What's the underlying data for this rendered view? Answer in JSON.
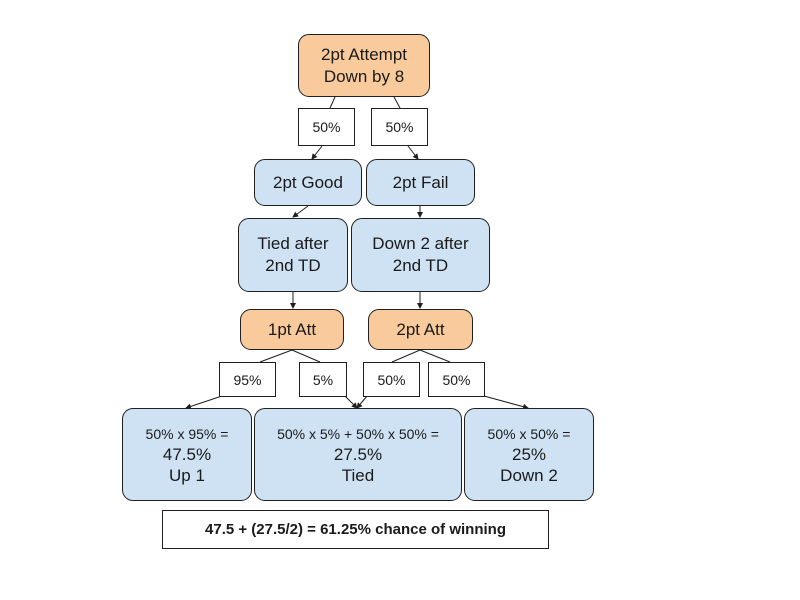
{
  "root": {
    "line1": "2pt Attempt",
    "line2": "Down by 8"
  },
  "branch1": {
    "left_pct": "50%",
    "right_pct": "50%"
  },
  "level1": {
    "good": "2pt Good",
    "fail": "2pt Fail"
  },
  "level2": {
    "tied": {
      "line1": "Tied after",
      "line2": "2nd TD"
    },
    "down2": {
      "line1": "Down 2 after",
      "line2": "2nd TD"
    }
  },
  "level3": {
    "one_pt": "1pt Att",
    "two_pt": "2pt Att"
  },
  "branch2": {
    "p95": "95%",
    "p5": "5%",
    "p50a": "50%",
    "p50b": "50%"
  },
  "outcomes": {
    "up1": {
      "formula": "50% x 95% =",
      "value": "47.5%",
      "label": "Up 1"
    },
    "tied": {
      "formula": "50% x 5% + 50% x 50% =",
      "value": "27.5%",
      "label": "Tied"
    },
    "down2": {
      "formula": "50% x 50% =",
      "value": "25%",
      "label": "Down 2"
    }
  },
  "summary": "47.5 + (27.5/2) = 61.25% chance of winning",
  "colors": {
    "orange": "#f9cb9c",
    "blue": "#cfe2f3",
    "line": "#1f1f1f"
  }
}
